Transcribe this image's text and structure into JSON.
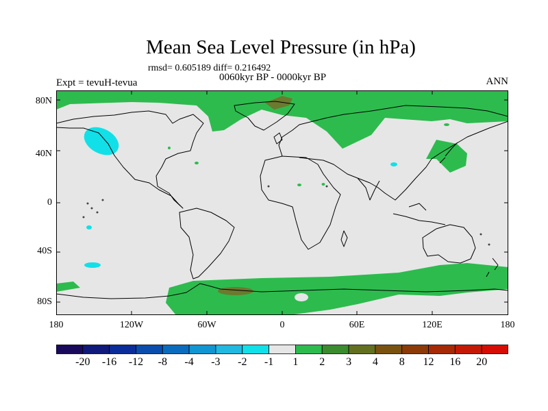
{
  "title": "Mean Sea Level Pressure (in hPa)",
  "stats": "rmsd= 0.605189 diff= 0.216492",
  "period": "0060kyr BP - 0000kyr BP",
  "experiment": "Expt = tevuH-tevua",
  "season": "ANN",
  "lat_labels": [
    "80N",
    "40N",
    "0",
    "40S",
    "80S"
  ],
  "lon_labels": [
    "180",
    "120W",
    "60W",
    "0",
    "60E",
    "120E",
    "180"
  ],
  "colorbar": {
    "labels": [
      "-20",
      "-16",
      "-12",
      "-8",
      "-4",
      "-3",
      "-2",
      "-1",
      "1",
      "2",
      "3",
      "4",
      "8",
      "12",
      "16",
      "20"
    ],
    "colors": [
      "#1a0a5c",
      "#0f1a7a",
      "#0a2d99",
      "#0a4dad",
      "#0b6cbd",
      "#1196d2",
      "#22b8e0",
      "#11e0e8",
      "#e6e6e6",
      "#2dbb4e",
      "#3a8c2e",
      "#63701f",
      "#7a5210",
      "#8c3a08",
      "#a62a05",
      "#c41a05",
      "#d60d05"
    ]
  },
  "map": {
    "background_color": "#e6e6e6",
    "positive_color": "#2dbb4e",
    "strong_positive_color": "#6b7a2e",
    "negative_color": "#11e0e8",
    "coast_color": "#000000"
  }
}
